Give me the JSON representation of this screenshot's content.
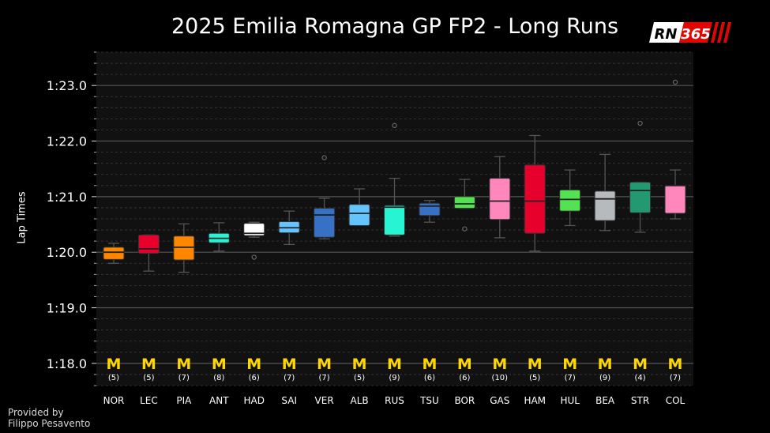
{
  "title": "2025 Emilia Romagna GP FP2 - Long Runs",
  "logo": {
    "text": "RN",
    "number": "365"
  },
  "credit": {
    "line1": "Provided by",
    "line2": "Filippo Pesavento"
  },
  "chart_data": {
    "type": "box",
    "ylabel": "Lap Times",
    "ylim_seconds": [
      77.6,
      83.6
    ],
    "yticks": [
      {
        "v": 78,
        "label": "1:18.0"
      },
      {
        "v": 79,
        "label": "1:19.0"
      },
      {
        "v": 80,
        "label": "1:20.0"
      },
      {
        "v": 81,
        "label": "1:21.0"
      },
      {
        "v": 82,
        "label": "1:22.0"
      },
      {
        "v": 83,
        "label": "1:23.0"
      }
    ],
    "tyre_symbol": "M",
    "drivers": [
      {
        "name": "NOR",
        "laps": "(5)",
        "color": "#FF8700",
        "wlo": 79.8,
        "q1": 79.87,
        "med": 80.0,
        "q3": 80.09,
        "whi": 80.16,
        "outliers": []
      },
      {
        "name": "LEC",
        "laps": "(5)",
        "color": "#E8002D",
        "wlo": 79.66,
        "q1": 79.98,
        "med": 80.06,
        "q3": 80.31,
        "whi": 80.31,
        "outliers": []
      },
      {
        "name": "PIA",
        "laps": "(7)",
        "color": "#FF8700",
        "wlo": 79.64,
        "q1": 79.86,
        "med": 80.09,
        "q3": 80.29,
        "whi": 80.51,
        "outliers": []
      },
      {
        "name": "ANT",
        "laps": "(8)",
        "color": "#27F4D2",
        "wlo": 80.02,
        "q1": 80.17,
        "med": 80.25,
        "q3": 80.34,
        "whi": 80.53,
        "outliers": []
      },
      {
        "name": "HAD",
        "laps": "(6)",
        "color": "#FFFFFF",
        "wlo": 80.27,
        "q1": 80.3,
        "med": 80.34,
        "q3": 80.52,
        "whi": 80.54,
        "outliers": [
          79.91
        ]
      },
      {
        "name": "SAI",
        "laps": "(7)",
        "color": "#64C4FF",
        "wlo": 80.14,
        "q1": 80.35,
        "med": 80.44,
        "q3": 80.55,
        "whi": 80.74,
        "outliers": []
      },
      {
        "name": "VER",
        "laps": "(7)",
        "color": "#3671C6",
        "wlo": 80.24,
        "q1": 80.27,
        "med": 80.67,
        "q3": 80.79,
        "whi": 80.97,
        "outliers": [
          81.7
        ]
      },
      {
        "name": "ALB",
        "laps": "(5)",
        "color": "#64C4FF",
        "wlo": 80.48,
        "q1": 80.48,
        "med": 80.7,
        "q3": 80.86,
        "whi": 81.14,
        "outliers": []
      },
      {
        "name": "RUS",
        "laps": "(9)",
        "color": "#27F4D2",
        "wlo": 80.29,
        "q1": 80.31,
        "med": 80.81,
        "q3": 80.84,
        "whi": 81.33,
        "outliers": [
          82.28
        ]
      },
      {
        "name": "TSU",
        "laps": "(6)",
        "color": "#3671C6",
        "wlo": 80.54,
        "q1": 80.66,
        "med": 80.83,
        "q3": 80.88,
        "whi": 80.93,
        "outliers": []
      },
      {
        "name": "BOR",
        "laps": "(6)",
        "color": "#52E252",
        "wlo": 80.79,
        "q1": 80.79,
        "med": 80.87,
        "q3": 81.0,
        "whi": 81.31,
        "outliers": [
          80.42
        ]
      },
      {
        "name": "GAS",
        "laps": "(10)",
        "color": "#FF87BC",
        "wlo": 80.26,
        "q1": 80.59,
        "med": 80.92,
        "q3": 81.33,
        "whi": 81.72,
        "outliers": []
      },
      {
        "name": "HAM",
        "laps": "(5)",
        "color": "#E8002D",
        "wlo": 80.02,
        "q1": 80.34,
        "med": 80.92,
        "q3": 81.57,
        "whi": 82.1,
        "outliers": []
      },
      {
        "name": "HUL",
        "laps": "(7)",
        "color": "#52E252",
        "wlo": 80.48,
        "q1": 80.74,
        "med": 80.95,
        "q3": 81.12,
        "whi": 81.48,
        "outliers": []
      },
      {
        "name": "BEA",
        "laps": "(9)",
        "color": "#B6BABD",
        "wlo": 80.39,
        "q1": 80.57,
        "med": 80.96,
        "q3": 81.1,
        "whi": 81.76,
        "outliers": []
      },
      {
        "name": "STR",
        "laps": "(4)",
        "color": "#229971",
        "wlo": 80.36,
        "q1": 80.71,
        "med": 81.11,
        "q3": 81.26,
        "whi": 81.26,
        "outliers": [
          82.32
        ]
      },
      {
        "name": "COL",
        "laps": "(7)",
        "color": "#FF87BC",
        "wlo": 80.6,
        "q1": 80.7,
        "med": 81.2,
        "q3": 81.2,
        "whi": 81.48,
        "outliers": [
          83.06
        ]
      }
    ]
  }
}
